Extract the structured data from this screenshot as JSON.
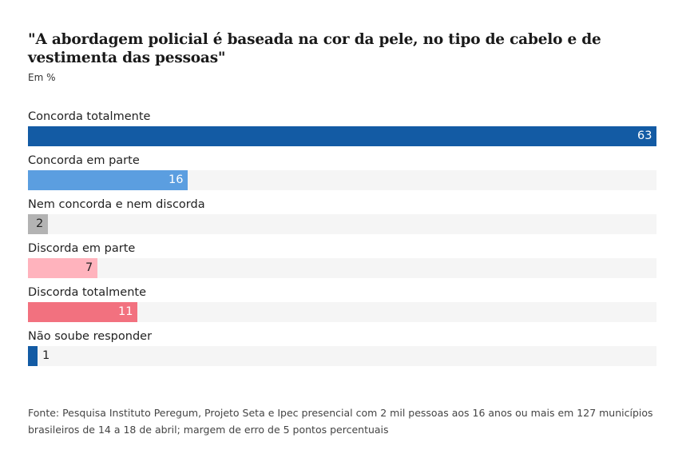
{
  "chart_data": {
    "type": "bar",
    "orientation": "horizontal",
    "title": "\"A abordagem policial é baseada na cor da pele, no tipo de cabelo e de vestimenta das pessoas\"",
    "subtitle": "Em %",
    "categories": [
      "Concorda totalmente",
      "Concorda em parte",
      "Nem concorda e nem discorda",
      "Discorda em parte",
      "Discorda totalmente",
      "Não soube responder"
    ],
    "values": [
      63,
      16,
      2,
      7,
      11,
      1
    ],
    "colors": [
      "#135ba4",
      "#5b9ee0",
      "#b3b3b3",
      "#ffb3bd",
      "#f2717f",
      "#135ba4"
    ],
    "label_colors": [
      "#ffffff",
      "#ffffff",
      "#222222",
      "#222222",
      "#ffffff",
      "#222222"
    ],
    "xlim": [
      0,
      63
    ],
    "grid": false,
    "legend": "none",
    "source": "Fonte: Pesquisa Instituto Peregum, Projeto Seta e Ipec presencial com 2 mil pessoas aos 16 anos ou mais em 127 municípios brasileiros de 14 a 18 de abril; margem de erro de 5 pontos percentuais"
  }
}
